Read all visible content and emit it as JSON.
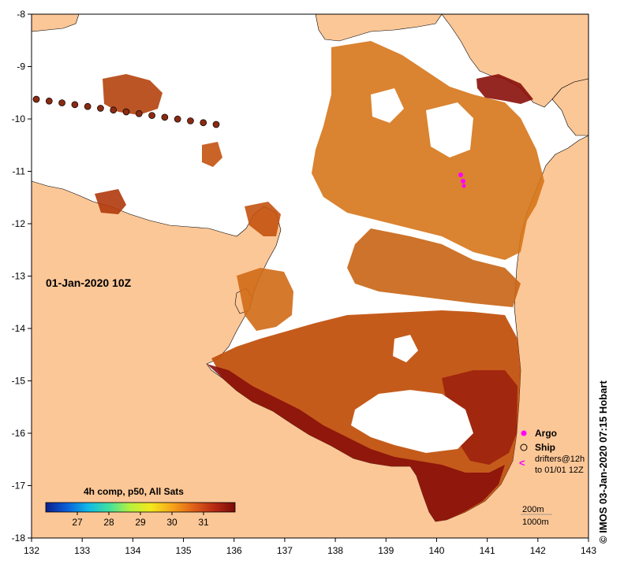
{
  "map": {
    "date_label": "01-Jan-2020 10Z",
    "composite_label": "4h comp, p50, All Sats",
    "colorbar": {
      "tick_labels": [
        "27",
        "28",
        "29",
        "30",
        "31"
      ],
      "colors": [
        "#0b1f8c",
        "#0a5fd8",
        "#10b8e8",
        "#3fe0a0",
        "#b6f23c",
        "#f3e81c",
        "#f7a51a",
        "#e0621a",
        "#b82a12",
        "#7a0a0a"
      ]
    },
    "legend": {
      "argo": "Argo",
      "ship": "Ship",
      "drifters_line1": "drifters@12h",
      "drifters_line2": "to 01/01 12Z",
      "isobath_200": "200m",
      "isobath_1000": "1000m"
    },
    "copyright": "© IMOS 03-Jan-2020 07:15 Hobart",
    "axes": {
      "x_ticks": [
        "132",
        "133",
        "134",
        "135",
        "136",
        "137",
        "138",
        "139",
        "140",
        "141",
        "142",
        "143"
      ],
      "y_ticks": [
        "-8",
        "-9",
        "-10",
        "-11",
        "-12",
        "-13",
        "-14",
        "-15",
        "-16",
        "-17",
        "-18"
      ]
    },
    "colors": {
      "land": "#fcc797",
      "sst_dark": "#8a0f0a",
      "sst_mid": "#c2520f",
      "sst_light": "#e3901c",
      "argo": "#ff00ff",
      "track": "#8b2a12"
    }
  }
}
